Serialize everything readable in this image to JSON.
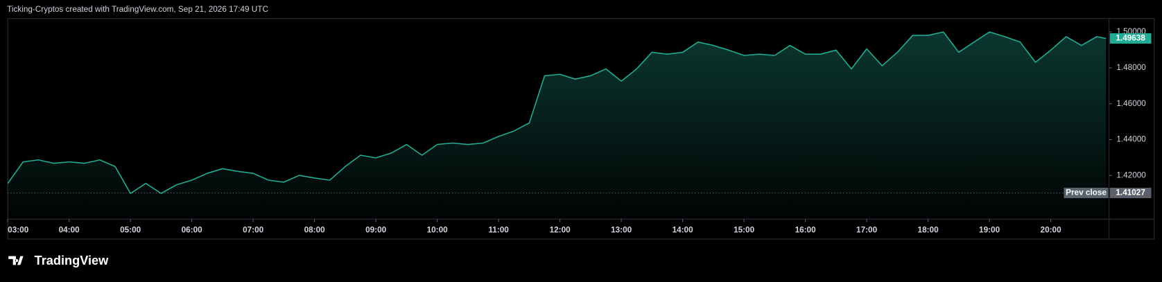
{
  "chart_data": {
    "type": "area",
    "title": "Ticking-Cryptos created with TradingView.com, Sep 21, 2026 17:49 UTC",
    "brand": "TradingView",
    "color": "#22ab94",
    "grid": false,
    "x": [
      3.0,
      3.25,
      3.5,
      3.75,
      4.0,
      4.25,
      4.5,
      4.75,
      5.0,
      5.25,
      5.5,
      5.75,
      6.0,
      6.25,
      6.5,
      6.75,
      7.0,
      7.25,
      7.5,
      7.75,
      8.0,
      8.25,
      8.5,
      8.75,
      9.0,
      9.25,
      9.5,
      9.75,
      10.0,
      10.25,
      10.5,
      10.75,
      11.0,
      11.25,
      11.5,
      11.75,
      12.0,
      12.25,
      12.5,
      12.75,
      13.0,
      13.25,
      13.5,
      13.75,
      14.0,
      14.25,
      14.5,
      14.75,
      15.0,
      15.25,
      15.5,
      15.75,
      16.0,
      16.25,
      16.5,
      16.75,
      17.0,
      17.25,
      17.5,
      17.75,
      18.0,
      18.25,
      18.5,
      18.75,
      19.0,
      19.25,
      19.5,
      19.75,
      20.0,
      20.25,
      20.5,
      20.75,
      20.9
    ],
    "values": [
      1.4156,
      1.4276,
      1.4287,
      1.4268,
      1.4276,
      1.4268,
      1.4287,
      1.425,
      1.41,
      1.4156,
      1.41,
      1.4148,
      1.4174,
      1.4212,
      1.4238,
      1.4223,
      1.4212,
      1.4174,
      1.4163,
      1.4201,
      1.4186,
      1.4174,
      1.425,
      1.4313,
      1.4298,
      1.4325,
      1.4373,
      1.4313,
      1.4373,
      1.4381,
      1.4373,
      1.4381,
      1.4418,
      1.4448,
      1.4493,
      1.4756,
      1.4764,
      1.4737,
      1.4756,
      1.4794,
      1.4726,
      1.4794,
      1.4887,
      1.4876,
      1.4887,
      1.4944,
      1.4925,
      1.4899,
      1.4869,
      1.4876,
      1.4869,
      1.4925,
      1.4876,
      1.4876,
      1.4899,
      1.4794,
      1.4906,
      1.4812,
      1.4887,
      1.4981,
      1.4981,
      1.5,
      1.4887,
      1.4944,
      1.5,
      1.4974,
      1.4944,
      1.4831,
      1.4899,
      1.4974,
      1.4925,
      1.4974,
      1.49638
    ],
    "xlim": [
      3,
      20.95
    ],
    "ylim": [
      1.3957,
      1.5075
    ],
    "xticks": [
      {
        "value": 3,
        "label": "03:00"
      },
      {
        "value": 4,
        "label": "04:00"
      },
      {
        "value": 5,
        "label": "05:00"
      },
      {
        "value": 6,
        "label": "06:00"
      },
      {
        "value": 7,
        "label": "07:00"
      },
      {
        "value": 8,
        "label": "08:00"
      },
      {
        "value": 9,
        "label": "09:00"
      },
      {
        "value": 10,
        "label": "10:00"
      },
      {
        "value": 11,
        "label": "11:00"
      },
      {
        "value": 12,
        "label": "12:00"
      },
      {
        "value": 13,
        "label": "13:00"
      },
      {
        "value": 14,
        "label": "14:00"
      },
      {
        "value": 15,
        "label": "15:00"
      },
      {
        "value": 16,
        "label": "16:00"
      },
      {
        "value": 17,
        "label": "17:00"
      },
      {
        "value": 18,
        "label": "18:00"
      },
      {
        "value": 19,
        "label": "19:00"
      },
      {
        "value": 20,
        "label": "20:00"
      }
    ],
    "yticks": [
      {
        "value": 1.42,
        "label": "1.42000"
      },
      {
        "value": 1.44,
        "label": "1.44000"
      },
      {
        "value": 1.46,
        "label": "1.46000"
      },
      {
        "value": 1.48,
        "label": "1.48000"
      },
      {
        "value": 1.5,
        "label": "1.50000"
      }
    ],
    "prev_close": {
      "label": "Prev close",
      "value": 1.41027
    }
  }
}
